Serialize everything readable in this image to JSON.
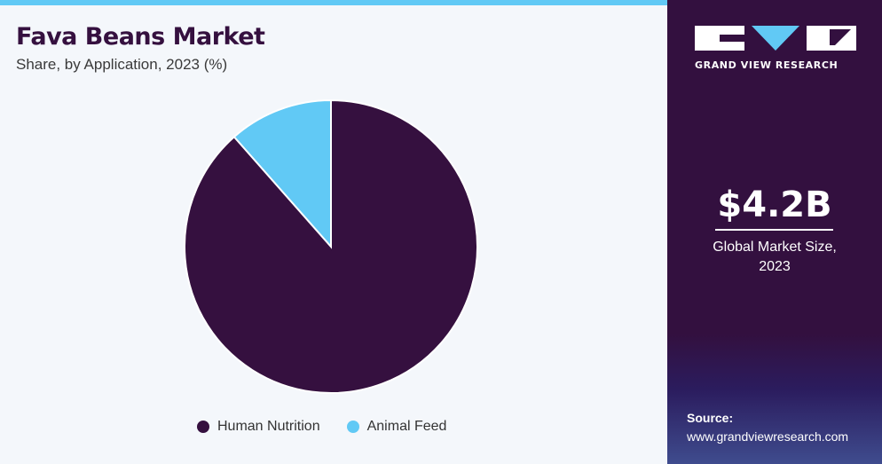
{
  "header": {
    "title": "Fava Beans Market",
    "subtitle": "Share, by Application, 2023 (%)"
  },
  "colors": {
    "accent": "#61c9f5",
    "brand_dark": "#33103f",
    "human_nutrition": "#35103f",
    "animal_feed": "#61c9f5"
  },
  "chart_data": {
    "type": "pie",
    "title": "Fava Beans Market",
    "subtitle": "Share, by Application, 2023 (%)",
    "categories": [
      "Human Nutrition",
      "Animal Feed"
    ],
    "values": [
      88.5,
      11.5
    ],
    "legend_position": "bottom"
  },
  "legend": {
    "items": [
      {
        "label": "Human Nutrition",
        "color": "#35103f"
      },
      {
        "label": "Animal Feed",
        "color": "#61c9f5"
      }
    ]
  },
  "sidebar": {
    "logo_text": "GRAND VIEW RESEARCH",
    "market_size": "$4.2B",
    "market_label_line1": "Global Market Size,",
    "market_label_line2": "2023",
    "source_label": "Source:",
    "source_url": "www.grandviewresearch.com"
  }
}
